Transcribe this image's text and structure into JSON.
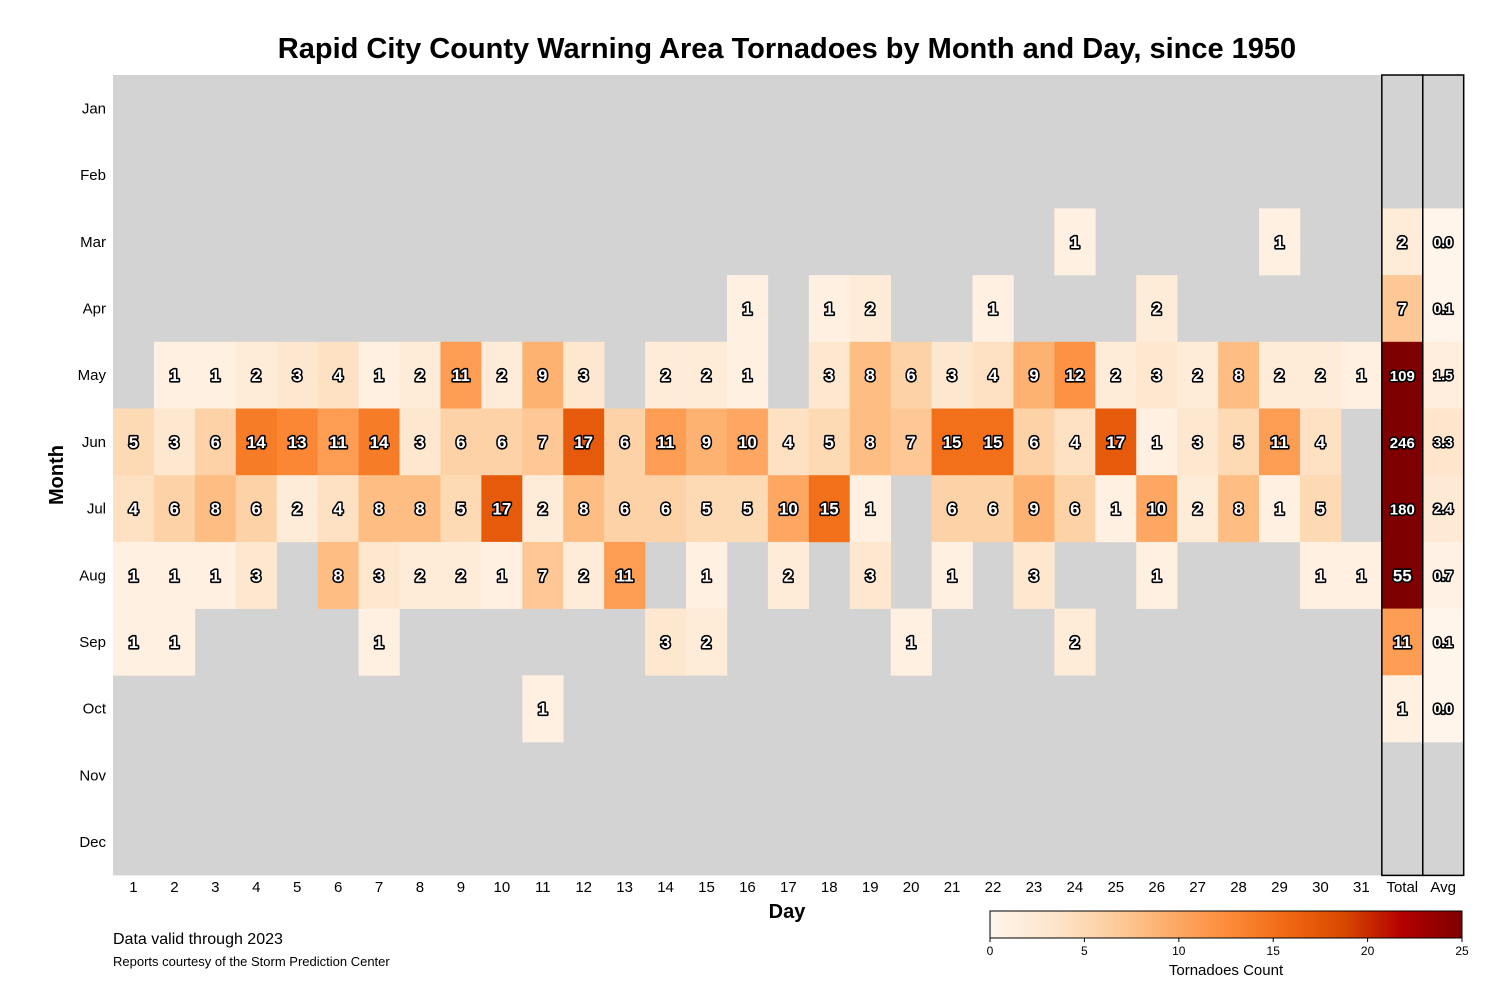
{
  "chart_data": {
    "type": "heatmap",
    "title": "Rapid City County Warning Area Tornadoes by Month and Day, since 1950",
    "xlabel": "Day",
    "ylabel": "Month",
    "months": [
      "Jan",
      "Feb",
      "Mar",
      "Apr",
      "May",
      "Jun",
      "Jul",
      "Aug",
      "Sep",
      "Oct",
      "Nov",
      "Dec"
    ],
    "days": [
      "1",
      "2",
      "3",
      "4",
      "5",
      "6",
      "7",
      "8",
      "9",
      "10",
      "11",
      "12",
      "13",
      "14",
      "15",
      "16",
      "17",
      "18",
      "19",
      "20",
      "21",
      "22",
      "23",
      "24",
      "25",
      "26",
      "27",
      "28",
      "29",
      "30",
      "31"
    ],
    "summary_columns": [
      "Total",
      "Avg"
    ],
    "values": [
      [
        0,
        0,
        0,
        0,
        0,
        0,
        0,
        0,
        0,
        0,
        0,
        0,
        0,
        0,
        0,
        0,
        0,
        0,
        0,
        0,
        0,
        0,
        0,
        0,
        0,
        0,
        0,
        0,
        0,
        0,
        0
      ],
      [
        0,
        0,
        0,
        0,
        0,
        0,
        0,
        0,
        0,
        0,
        0,
        0,
        0,
        0,
        0,
        0,
        0,
        0,
        0,
        0,
        0,
        0,
        0,
        0,
        0,
        0,
        0,
        0,
        0,
        0,
        0
      ],
      [
        0,
        0,
        0,
        0,
        0,
        0,
        0,
        0,
        0,
        0,
        0,
        0,
        0,
        0,
        0,
        0,
        0,
        0,
        0,
        0,
        0,
        0,
        0,
        1,
        0,
        0,
        0,
        0,
        1,
        0,
        0
      ],
      [
        0,
        0,
        0,
        0,
        0,
        0,
        0,
        0,
        0,
        0,
        0,
        0,
        0,
        0,
        0,
        1,
        0,
        1,
        2,
        0,
        0,
        1,
        0,
        0,
        0,
        2,
        0,
        0,
        0,
        0,
        0
      ],
      [
        0,
        1,
        1,
        2,
        3,
        4,
        1,
        2,
        11,
        2,
        9,
        3,
        0,
        2,
        2,
        1,
        0,
        3,
        8,
        6,
        3,
        4,
        9,
        12,
        2,
        3,
        2,
        8,
        2,
        2,
        1
      ],
      [
        5,
        3,
        6,
        14,
        13,
        11,
        14,
        3,
        6,
        6,
        7,
        17,
        6,
        11,
        9,
        10,
        4,
        5,
        8,
        7,
        15,
        15,
        6,
        4,
        17,
        1,
        3,
        5,
        11,
        4,
        0
      ],
      [
        4,
        6,
        8,
        6,
        2,
        4,
        8,
        8,
        5,
        17,
        2,
        8,
        6,
        6,
        5,
        5,
        10,
        15,
        1,
        0,
        6,
        6,
        9,
        6,
        1,
        10,
        2,
        8,
        1,
        5,
        0
      ],
      [
        1,
        1,
        1,
        3,
        0,
        8,
        3,
        2,
        2,
        1,
        7,
        2,
        11,
        0,
        1,
        0,
        2,
        0,
        3,
        0,
        1,
        0,
        3,
        0,
        0,
        1,
        0,
        0,
        0,
        1,
        1
      ],
      [
        1,
        1,
        0,
        0,
        0,
        0,
        1,
        0,
        0,
        0,
        0,
        0,
        0,
        3,
        2,
        0,
        0,
        0,
        0,
        1,
        0,
        0,
        0,
        2,
        0,
        0,
        0,
        0,
        0,
        0,
        0
      ],
      [
        0,
        0,
        0,
        0,
        0,
        0,
        0,
        0,
        0,
        0,
        1,
        0,
        0,
        0,
        0,
        0,
        0,
        0,
        0,
        0,
        0,
        0,
        0,
        0,
        0,
        0,
        0,
        0,
        0,
        0,
        0
      ],
      [
        0,
        0,
        0,
        0,
        0,
        0,
        0,
        0,
        0,
        0,
        0,
        0,
        0,
        0,
        0,
        0,
        0,
        0,
        0,
        0,
        0,
        0,
        0,
        0,
        0,
        0,
        0,
        0,
        0,
        0,
        0
      ],
      [
        0,
        0,
        0,
        0,
        0,
        0,
        0,
        0,
        0,
        0,
        0,
        0,
        0,
        0,
        0,
        0,
        0,
        0,
        0,
        0,
        0,
        0,
        0,
        0,
        0,
        0,
        0,
        0,
        0,
        0,
        0
      ]
    ],
    "totals": [
      0,
      0,
      2,
      7,
      109,
      246,
      180,
      55,
      11,
      1,
      0,
      0
    ],
    "averages": [
      "",
      "",
      "0.0",
      "0.1",
      "1.5",
      "3.3",
      "2.4",
      "0.7",
      "0.1",
      "0.0",
      "",
      ""
    ],
    "colorbar": {
      "label": "Tornadoes Count",
      "min": 0,
      "max": 25,
      "ticks": [
        "0",
        "5",
        "10",
        "15",
        "20",
        "25"
      ],
      "colormap": [
        "#fff5eb",
        "#fee6ce",
        "#fdd0a2",
        "#fdae6b",
        "#fd8d3c",
        "#f16913",
        "#d94801",
        "#b30000",
        "#7f0000"
      ]
    },
    "empty_color": "#d3d3d3"
  },
  "footer": {
    "line1": "Data valid through 2023",
    "line2": "Reports courtesy of the Storm Prediction Center"
  }
}
